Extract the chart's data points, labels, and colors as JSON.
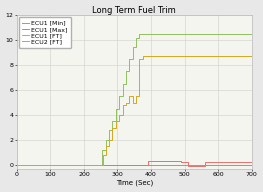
{
  "title": "Long Term Fuel Trim",
  "xlabel": "Time (Sec)",
  "xlim": [
    0,
    700
  ],
  "ylim": [
    -0.3,
    12
  ],
  "yticks": [
    0,
    2,
    4,
    6,
    8,
    10,
    12
  ],
  "xticks": [
    0,
    100,
    200,
    300,
    400,
    500,
    600,
    700
  ],
  "legend": [
    {
      "label": "ECU1 [Min]",
      "color": "#7b9cd4"
    },
    {
      "label": "ECU1 [Max]",
      "color": "#e87070"
    },
    {
      "label": "ECU1 [FT]",
      "color": "#90c060"
    },
    {
      "label": "ECU2 [FT]",
      "color": "#d4a820"
    }
  ],
  "series": {
    "ecu1_min": {
      "color": "#7b9cd4",
      "x": [
        0,
        700
      ],
      "y": [
        0,
        0
      ]
    },
    "ecu1_max": {
      "color": "#e87070",
      "x": [
        0,
        390,
        390,
        490,
        490,
        510,
        510,
        560,
        560,
        700
      ],
      "y": [
        0,
        0,
        0.3,
        0.3,
        0.2,
        0.2,
        -0.1,
        -0.1,
        0.2,
        0.2
      ]
    },
    "ecu1_ft": {
      "color": "#90c060",
      "x": [
        0,
        255,
        255,
        265,
        265,
        275,
        275,
        285,
        285,
        295,
        295,
        305,
        305,
        315,
        315,
        325,
        325,
        335,
        335,
        345,
        345,
        355,
        355,
        365,
        365,
        375,
        375,
        385,
        385,
        700
      ],
      "y": [
        0,
        0,
        1.2,
        1.2,
        2.0,
        2.0,
        2.8,
        2.8,
        3.5,
        3.5,
        4.5,
        4.5,
        5.5,
        5.5,
        6.5,
        6.5,
        7.5,
        7.5,
        8.5,
        8.5,
        9.5,
        9.5,
        10.2,
        10.2,
        10.5,
        10.5,
        10.5,
        10.5,
        10.5,
        10.5
      ]
    },
    "ecu2_ft": {
      "color": "#d4a820",
      "x": [
        0,
        258,
        258,
        265,
        265,
        275,
        275,
        285,
        285,
        295,
        295,
        305,
        305,
        315,
        315,
        325,
        325,
        335,
        335,
        345,
        345,
        355,
        355,
        365,
        365,
        375,
        375,
        700
      ],
      "y": [
        0,
        0,
        0.8,
        0.8,
        1.5,
        1.5,
        2.0,
        2.0,
        3.0,
        3.0,
        3.5,
        3.5,
        4.0,
        4.0,
        4.8,
        4.8,
        5.0,
        5.0,
        5.5,
        5.5,
        5.0,
        5.0,
        5.5,
        5.5,
        8.5,
        8.5,
        8.7,
        8.7
      ]
    }
  },
  "fig_bg": "#e8e8e8",
  "plot_bg": "#f5f5f0",
  "grid_color": "#d0d0cc",
  "title_fontsize": 6,
  "label_fontsize": 5,
  "tick_fontsize": 4.5,
  "legend_fontsize": 4.5,
  "linewidth": 0.7
}
